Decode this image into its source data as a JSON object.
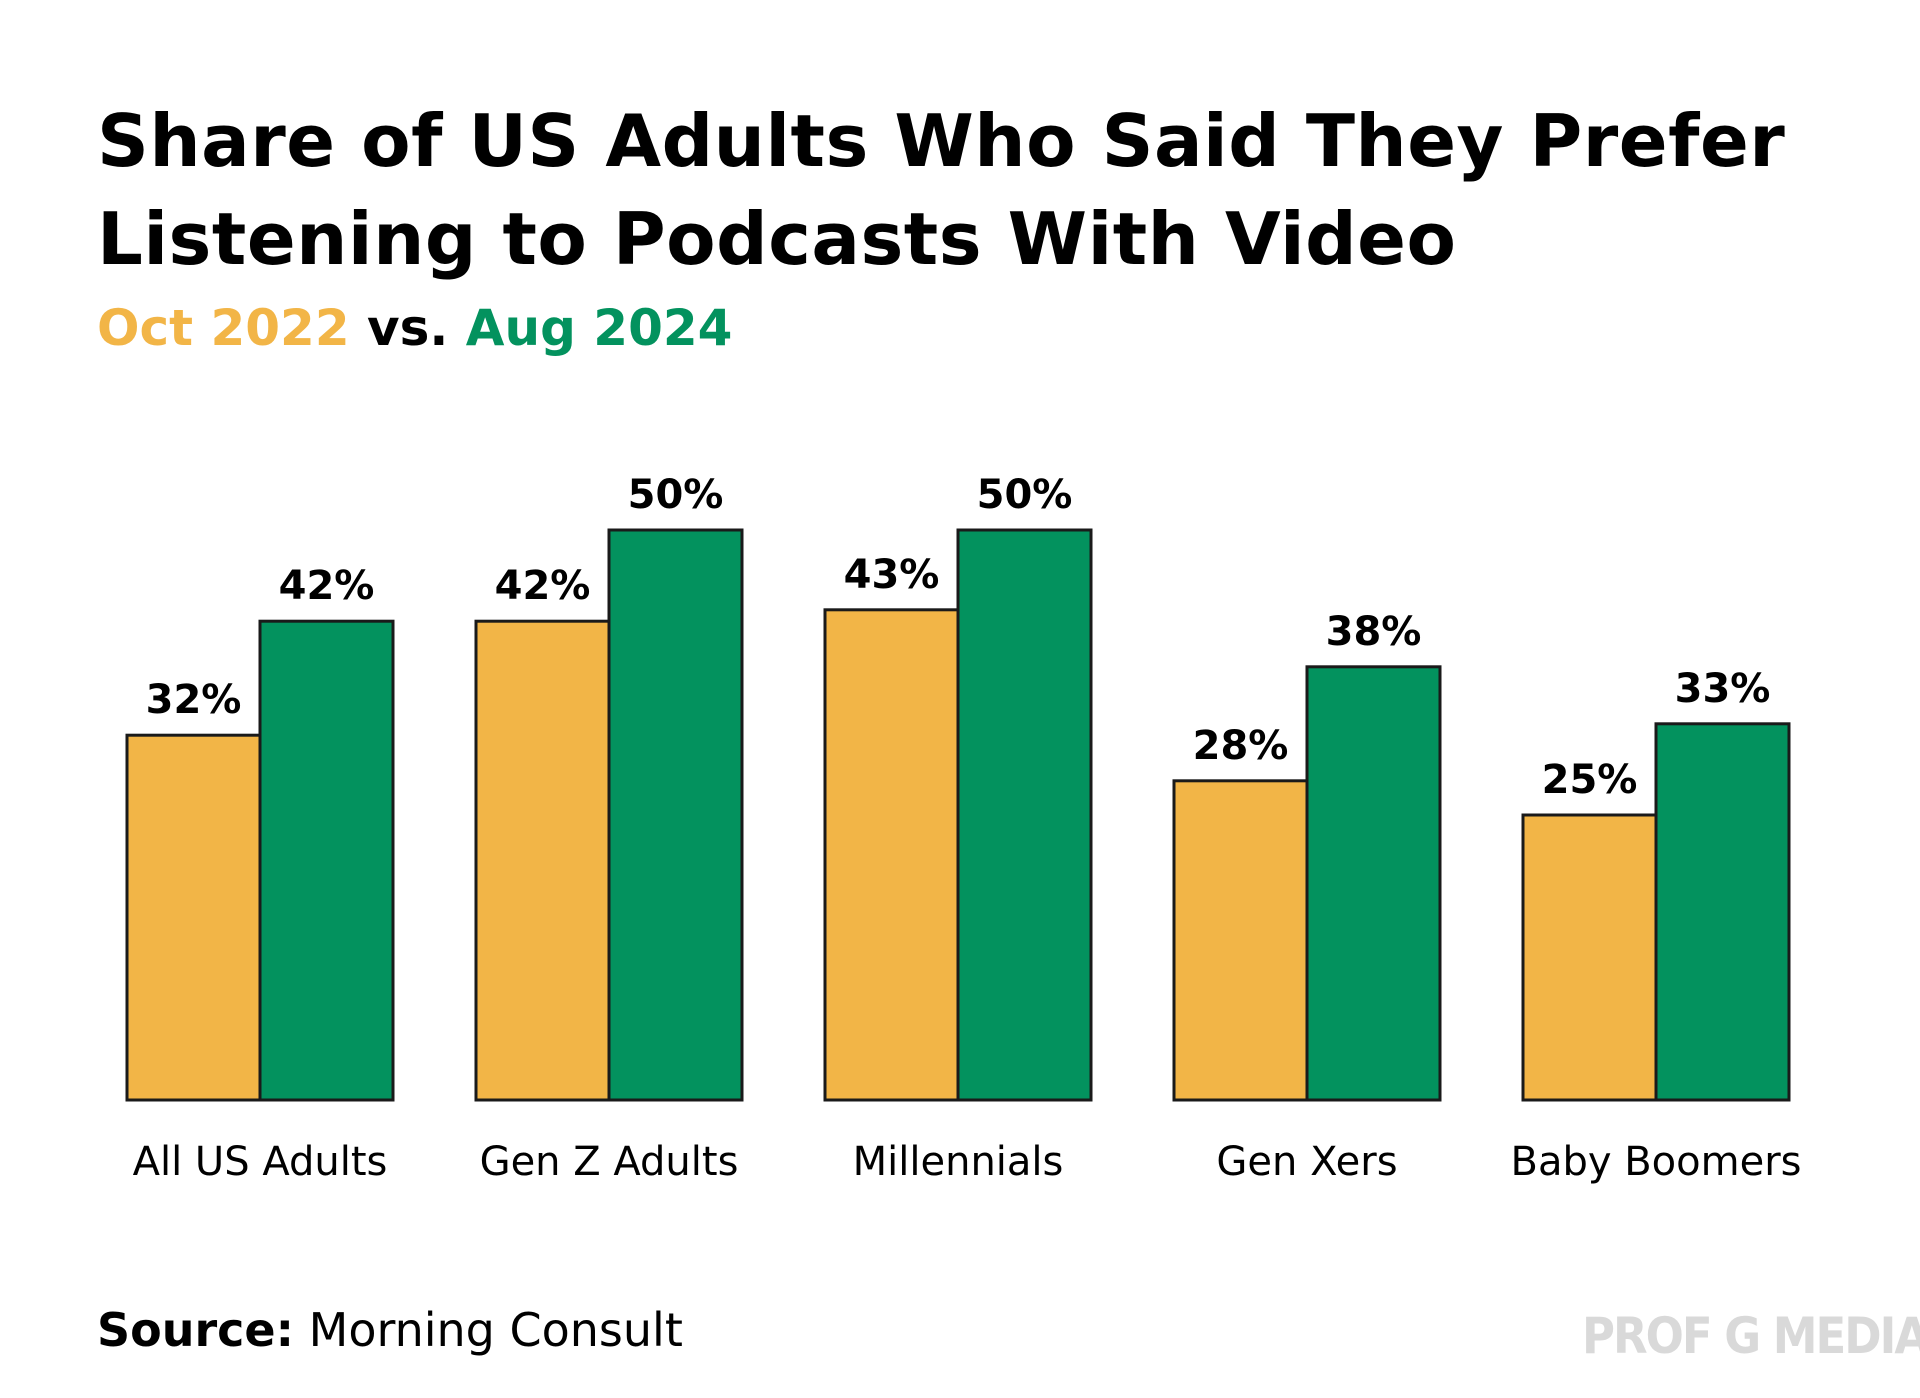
{
  "header": {
    "title_line1": "Share of US Adults Who Said They Prefer",
    "title_line2": "Listening to Podcasts With Video",
    "subtitle_a": "Oct 2022",
    "subtitle_sep": " vs. ",
    "subtitle_b": "Aug 2024"
  },
  "footer": {
    "source_label": "Source:",
    "source_value": " Morning Consult",
    "brand": "PROF G MEDIA"
  },
  "colors": {
    "oct2022": "#f2b547",
    "aug2024": "#03925e",
    "outline": "#1a1a1a",
    "text": "#000000",
    "brand": "#d9d9d9"
  },
  "chart_data": {
    "type": "bar",
    "title": "Share of US Adults Who Said They Prefer Listening to Podcasts With Video",
    "subtitle": "Oct 2022 vs. Aug 2024",
    "categories": [
      "All US Adults",
      "Gen Z Adults",
      "Millennials",
      "Gen Xers",
      "Baby Boomers"
    ],
    "series": [
      {
        "name": "Oct 2022",
        "color": "#f2b547",
        "values": [
          32,
          42,
          43,
          28,
          25
        ]
      },
      {
        "name": "Aug 2024",
        "color": "#03925e",
        "values": [
          42,
          50,
          50,
          38,
          33
        ]
      }
    ],
    "value_suffix": "%",
    "xlabel": "",
    "ylabel": "",
    "ylim": [
      0,
      50
    ],
    "grid": false
  }
}
